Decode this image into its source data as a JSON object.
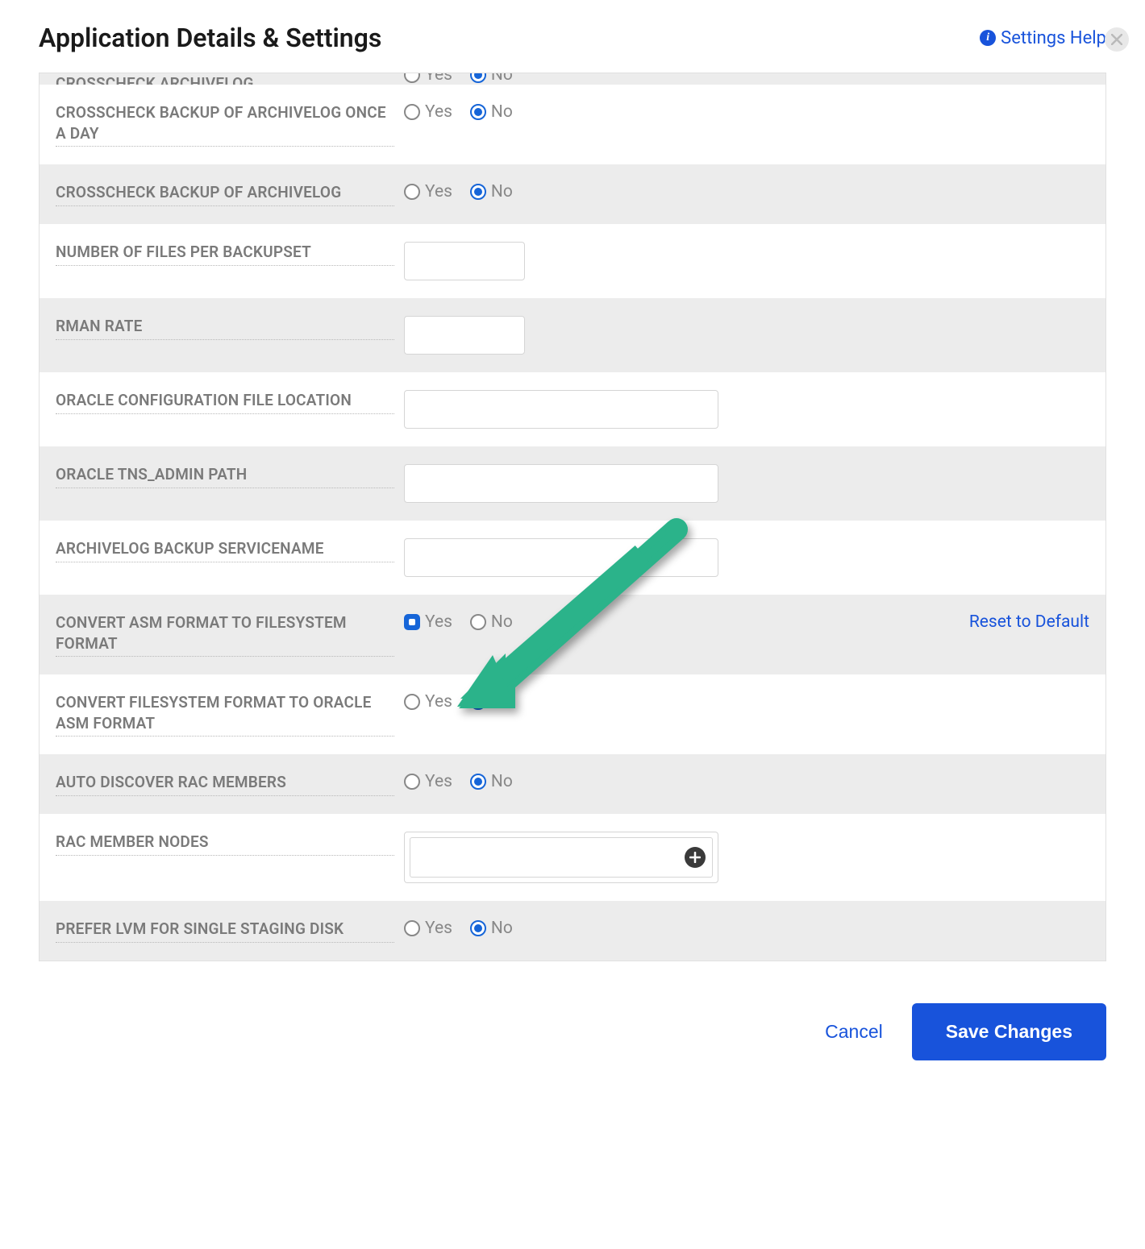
{
  "header": {
    "title": "Application Details & Settings",
    "help_label": "Settings Help"
  },
  "labels": {
    "yes": "Yes",
    "no": "No",
    "reset": "Reset to Default",
    "cancel": "Cancel",
    "save": "Save Changes"
  },
  "colors": {
    "primary": "#1853db",
    "radio_selected": "#1665d8",
    "label_text": "#7a7a7a",
    "row_alt_bg": "#ececec",
    "border": "#d5d5d5",
    "arrow": "#2bb38a"
  },
  "rows": [
    {
      "key": "crosscheck_archivelog_cut",
      "label": "CROSSCHECK ARCHIVELOG",
      "type": "radio",
      "value": "No",
      "alt": true,
      "cut": true
    },
    {
      "key": "crosscheck_backup_once",
      "label": "CROSSCHECK BACKUP OF ARCHIVELOG ONCE A DAY",
      "type": "radio",
      "value": "No",
      "alt": false
    },
    {
      "key": "crosscheck_backup",
      "label": "CROSSCHECK BACKUP OF ARCHIVELOG",
      "type": "radio",
      "value": "No",
      "alt": true
    },
    {
      "key": "files_per_backupset",
      "label": "NUMBER OF FILES PER BACKUPSET",
      "type": "text",
      "width": "small",
      "value": "",
      "alt": false
    },
    {
      "key": "rman_rate",
      "label": "RMAN RATE",
      "type": "text",
      "width": "small",
      "value": "",
      "alt": true
    },
    {
      "key": "oracle_config_loc",
      "label": "ORACLE CONFIGURATION FILE LOCATION",
      "type": "text",
      "width": "med",
      "value": "",
      "alt": false
    },
    {
      "key": "oracle_tns_admin",
      "label": "ORACLE TNS_ADMIN PATH",
      "type": "text",
      "width": "med",
      "value": "",
      "alt": true
    },
    {
      "key": "archivelog_backup_svc",
      "label": "ARCHIVELOG BACKUP SERVICENAME",
      "type": "text",
      "width": "med",
      "value": "",
      "alt": false
    },
    {
      "key": "convert_asm_to_fs",
      "label": "CONVERT ASM FORMAT TO FILESYSTEM FORMAT",
      "type": "radio",
      "value": "Yes",
      "alt": true,
      "show_reset": true,
      "yes_style": "square"
    },
    {
      "key": "convert_fs_to_asm",
      "label": "CONVERT FILESYSTEM FORMAT TO ORACLE ASM FORMAT",
      "type": "radio",
      "value": "No",
      "alt": false
    },
    {
      "key": "auto_discover_rac",
      "label": "AUTO DISCOVER RAC MEMBERS",
      "type": "radio",
      "value": "No",
      "alt": true
    },
    {
      "key": "rac_member_nodes",
      "label": "RAC MEMBER NODES",
      "type": "tagbox",
      "value": "",
      "alt": false
    },
    {
      "key": "prefer_lvm",
      "label": "PREFER LVM FOR SINGLE STAGING DISK",
      "type": "radio",
      "value": "No",
      "alt": true
    }
  ],
  "annotation": {
    "arrow_color": "#2bb38a",
    "target_row": "convert_asm_to_fs"
  }
}
